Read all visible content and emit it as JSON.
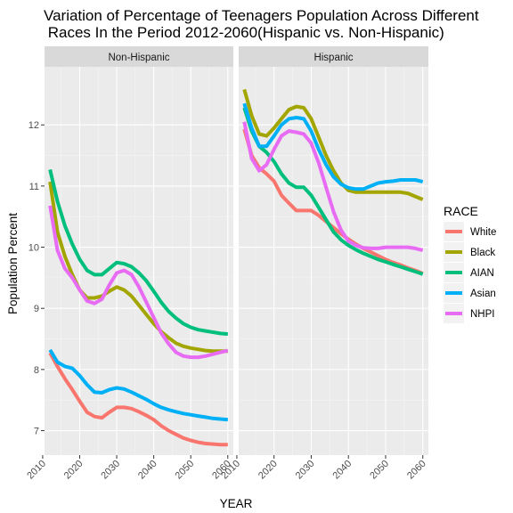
{
  "chart_data": {
    "type": "line",
    "title_lines": [
      "Variation of Percentage of Teenagers Population Across Different",
      " Races In the Period 2012-2060(Hispanic vs. Non-Hispanic)"
    ],
    "xlabel": "YEAR",
    "ylabel": "Population Percent",
    "xlim": [
      2010.5,
      2061.5
    ],
    "ylim": [
      6.6,
      12.95
    ],
    "x_ticks": [
      2010,
      2020,
      2030,
      2040,
      2050,
      2060
    ],
    "y_ticks": [
      7,
      8,
      9,
      10,
      11,
      12
    ],
    "legend_title": "RACE",
    "legend_position": "right",
    "grid": true,
    "colors": {
      "White": "#F8766D",
      "Black": "#A3A500",
      "AIAN": "#00BF7D",
      "Asian": "#00B0F6",
      "NHPI": "#E76BF3"
    },
    "panels": [
      {
        "label": "Non-Hispanic",
        "series": [
          {
            "name": "White",
            "x": [
              2012,
              2014,
              2016,
              2018,
              2020,
              2022,
              2024,
              2026,
              2028,
              2030,
              2032,
              2034,
              2036,
              2038,
              2040,
              2042,
              2044,
              2046,
              2048,
              2050,
              2052,
              2054,
              2056,
              2058,
              2060
            ],
            "values": [
              8.27,
              8.05,
              7.85,
              7.67,
              7.48,
              7.3,
              7.23,
              7.21,
              7.3,
              7.38,
              7.38,
              7.36,
              7.31,
              7.25,
              7.18,
              7.08,
              7.0,
              6.94,
              6.88,
              6.84,
              6.81,
              6.79,
              6.78,
              6.77,
              6.77
            ]
          },
          {
            "name": "Black",
            "x": [
              2012,
              2014,
              2016,
              2018,
              2020,
              2022,
              2024,
              2026,
              2028,
              2030,
              2032,
              2034,
              2036,
              2038,
              2040,
              2042,
              2044,
              2046,
              2048,
              2050,
              2052,
              2054,
              2056,
              2058,
              2060
            ],
            "values": [
              11.07,
              10.25,
              9.85,
              9.55,
              9.3,
              9.17,
              9.17,
              9.2,
              9.28,
              9.35,
              9.3,
              9.2,
              9.05,
              8.9,
              8.75,
              8.62,
              8.52,
              8.43,
              8.38,
              8.35,
              8.33,
              8.31,
              8.3,
              8.3,
              8.3
            ]
          },
          {
            "name": "AIAN",
            "x": [
              2012,
              2014,
              2016,
              2018,
              2020,
              2022,
              2024,
              2026,
              2028,
              2030,
              2032,
              2034,
              2036,
              2038,
              2040,
              2042,
              2044,
              2046,
              2048,
              2050,
              2052,
              2054,
              2056,
              2058,
              2060
            ],
            "values": [
              11.27,
              10.75,
              10.35,
              10.05,
              9.8,
              9.62,
              9.55,
              9.55,
              9.65,
              9.75,
              9.73,
              9.68,
              9.58,
              9.45,
              9.28,
              9.1,
              8.95,
              8.84,
              8.75,
              8.69,
              8.65,
              8.63,
              8.61,
              8.59,
              8.58
            ]
          },
          {
            "name": "Asian",
            "x": [
              2012,
              2014,
              2016,
              2018,
              2020,
              2022,
              2024,
              2026,
              2028,
              2030,
              2032,
              2034,
              2036,
              2038,
              2040,
              2042,
              2044,
              2046,
              2048,
              2050,
              2052,
              2054,
              2056,
              2058,
              2060
            ],
            "values": [
              8.32,
              8.12,
              8.05,
              8.02,
              7.9,
              7.75,
              7.63,
              7.62,
              7.67,
              7.7,
              7.68,
              7.63,
              7.57,
              7.51,
              7.44,
              7.38,
              7.34,
              7.31,
              7.28,
              7.26,
              7.24,
              7.22,
              7.2,
              7.19,
              7.18
            ]
          },
          {
            "name": "NHPI",
            "x": [
              2012,
              2014,
              2016,
              2018,
              2020,
              2022,
              2024,
              2026,
              2028,
              2030,
              2032,
              2034,
              2036,
              2038,
              2040,
              2042,
              2044,
              2046,
              2048,
              2050,
              2052,
              2054,
              2056,
              2058,
              2060
            ],
            "values": [
              10.68,
              9.95,
              9.65,
              9.5,
              9.3,
              9.12,
              9.08,
              9.15,
              9.38,
              9.58,
              9.62,
              9.55,
              9.35,
              9.1,
              8.85,
              8.6,
              8.42,
              8.28,
              8.22,
              8.2,
              8.2,
              8.22,
              8.25,
              8.28,
              8.31
            ]
          }
        ]
      },
      {
        "label": "Hispanic",
        "series": [
          {
            "name": "White",
            "x": [
              2012,
              2014,
              2016,
              2018,
              2020,
              2022,
              2024,
              2026,
              2028,
              2030,
              2032,
              2034,
              2036,
              2038,
              2040,
              2042,
              2044,
              2046,
              2048,
              2050,
              2052,
              2054,
              2056,
              2058,
              2060
            ],
            "values": [
              11.93,
              11.5,
              11.3,
              11.2,
              11.08,
              10.85,
              10.72,
              10.6,
              10.6,
              10.6,
              10.52,
              10.42,
              10.32,
              10.22,
              10.13,
              10.05,
              9.98,
              9.92,
              9.86,
              9.8,
              9.75,
              9.71,
              9.66,
              9.62,
              9.57
            ]
          },
          {
            "name": "Black",
            "x": [
              2012,
              2014,
              2016,
              2018,
              2020,
              2022,
              2024,
              2026,
              2028,
              2030,
              2032,
              2034,
              2036,
              2038,
              2040,
              2042,
              2044,
              2046,
              2048,
              2050,
              2052,
              2054,
              2056,
              2058,
              2060
            ],
            "values": [
              12.58,
              12.15,
              11.85,
              11.82,
              11.95,
              12.1,
              12.25,
              12.3,
              12.28,
              12.1,
              11.8,
              11.5,
              11.25,
              11.05,
              10.93,
              10.9,
              10.9,
              10.9,
              10.9,
              10.9,
              10.9,
              10.9,
              10.88,
              10.83,
              10.78
            ]
          },
          {
            "name": "AIAN",
            "x": [
              2012,
              2014,
              2016,
              2018,
              2020,
              2022,
              2024,
              2026,
              2028,
              2030,
              2032,
              2034,
              2036,
              2038,
              2040,
              2042,
              2044,
              2046,
              2048,
              2050,
              2052,
              2054,
              2056,
              2058,
              2060
            ],
            "values": [
              12.28,
              11.9,
              11.65,
              11.55,
              11.4,
              11.2,
              11.05,
              10.98,
              10.98,
              10.85,
              10.65,
              10.45,
              10.25,
              10.12,
              10.03,
              9.96,
              9.9,
              9.85,
              9.8,
              9.76,
              9.72,
              9.68,
              9.64,
              9.6,
              9.56
            ]
          },
          {
            "name": "Asian",
            "x": [
              2012,
              2014,
              2016,
              2018,
              2020,
              2022,
              2024,
              2026,
              2028,
              2030,
              2032,
              2034,
              2036,
              2038,
              2040,
              2042,
              2044,
              2046,
              2048,
              2050,
              2052,
              2054,
              2056,
              2058,
              2060
            ],
            "values": [
              12.35,
              11.95,
              11.65,
              11.65,
              11.82,
              12.0,
              12.1,
              12.12,
              12.1,
              11.9,
              11.6,
              11.35,
              11.15,
              11.03,
              10.97,
              10.95,
              10.95,
              11.0,
              11.05,
              11.07,
              11.08,
              11.1,
              11.1,
              11.1,
              11.07
            ]
          },
          {
            "name": "NHPI",
            "x": [
              2012,
              2014,
              2016,
              2018,
              2020,
              2022,
              2024,
              2026,
              2028,
              2030,
              2032,
              2034,
              2036,
              2038,
              2040,
              2042,
              2044,
              2046,
              2048,
              2050,
              2052,
              2054,
              2056,
              2058,
              2060
            ],
            "values": [
              12.05,
              11.45,
              11.25,
              11.35,
              11.6,
              11.82,
              11.9,
              11.88,
              11.85,
              11.7,
              11.38,
              10.98,
              10.58,
              10.28,
              10.1,
              10.03,
              9.99,
              9.98,
              9.98,
              10.0,
              10.0,
              10.0,
              10.0,
              9.98,
              9.95
            ]
          }
        ]
      }
    ]
  }
}
